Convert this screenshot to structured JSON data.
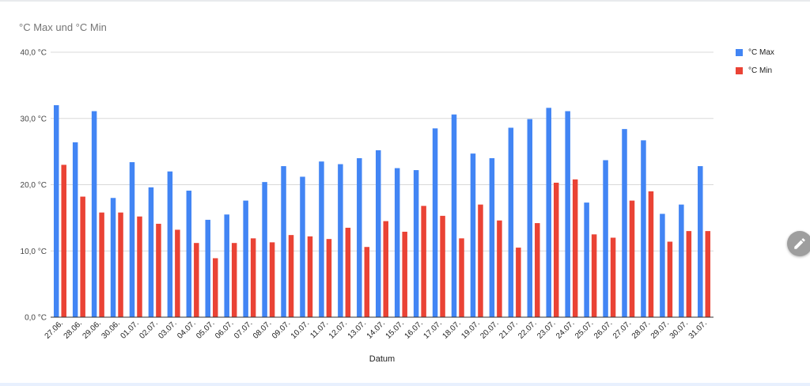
{
  "chart_data": {
    "type": "bar",
    "title": "°C Max und °C Min",
    "xlabel": "Datum",
    "ylabel": "",
    "ylim": [
      0,
      40
    ],
    "yticks": [
      "0,0 °C",
      "10,0 °C",
      "20,0 °C",
      "30,0 °C",
      "40,0 °C"
    ],
    "grid": true,
    "legend_position": "right",
    "categories": [
      "27.06.",
      "28.06.",
      "29.06.",
      "30.06.",
      "01.07.",
      "02.07.",
      "03.07.",
      "04.07.",
      "05.07.",
      "06.07.",
      "07.07.",
      "08.07.",
      "09.07.",
      "10.07.",
      "11.07.",
      "12.07.",
      "13.07.",
      "14.07.",
      "15.07.",
      "16.07.",
      "17.07.",
      "18.07.",
      "19.07.",
      "20.07.",
      "21.07.",
      "22.07.",
      "23.07.",
      "24.07.",
      "25.07.",
      "26.07.",
      "27.07.",
      "28.07.",
      "29.07.",
      "30.07.",
      "31.07."
    ],
    "series": [
      {
        "name": "°C Max",
        "color": "#4285f4",
        "values": [
          32.0,
          26.4,
          31.1,
          18.0,
          23.4,
          19.6,
          22.0,
          19.1,
          14.7,
          15.5,
          17.6,
          20.4,
          22.8,
          21.2,
          23.5,
          23.1,
          24.0,
          25.2,
          22.5,
          22.2,
          28.5,
          30.6,
          24.7,
          24.0,
          28.6,
          29.9,
          31.6,
          31.1,
          17.3,
          23.7,
          28.4,
          26.7,
          15.6,
          17.0,
          22.8
        ]
      },
      {
        "name": "°C Min",
        "color": "#ea4335",
        "values": [
          23.0,
          18.2,
          15.8,
          15.8,
          15.2,
          14.1,
          13.2,
          11.2,
          8.9,
          11.2,
          11.9,
          11.3,
          12.4,
          12.2,
          11.8,
          13.5,
          10.6,
          14.5,
          12.9,
          16.8,
          15.3,
          11.9,
          17.0,
          14.6,
          10.5,
          14.2,
          20.3,
          20.8,
          12.5,
          12.0,
          17.6,
          19.0,
          11.4,
          13.0,
          13.0
        ]
      }
    ]
  },
  "ui": {
    "edit_icon": "pencil-icon"
  }
}
